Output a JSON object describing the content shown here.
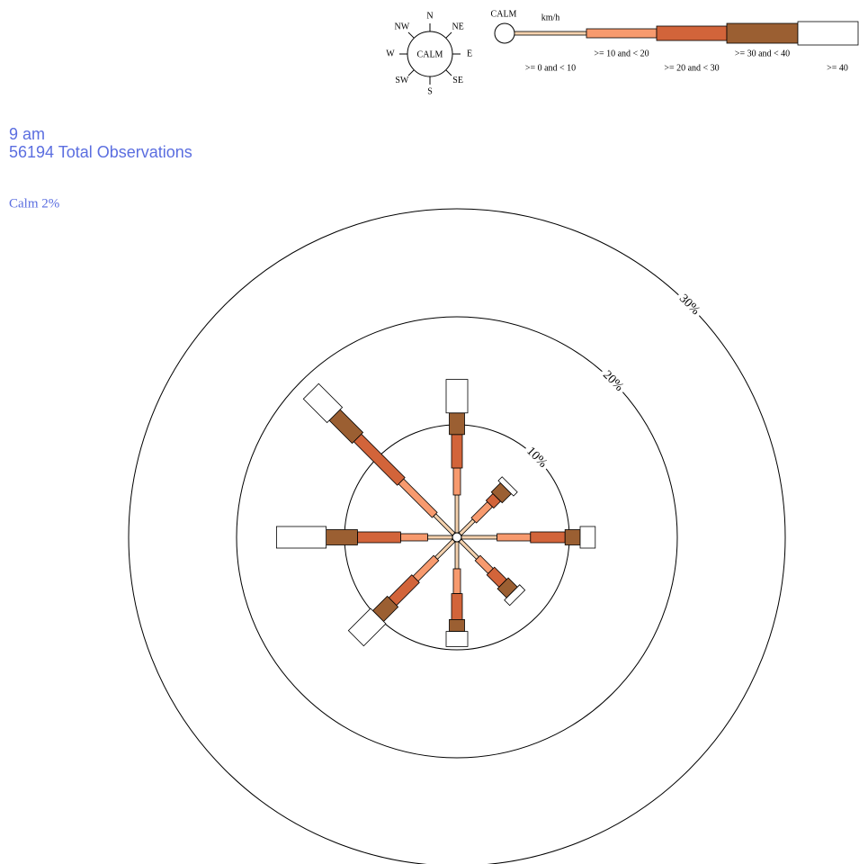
{
  "chart_data": {
    "type": "windrose",
    "title": "9 am",
    "subtitle": "56194 Total Observations",
    "calm_label": "Calm 2%",
    "categories": [
      "N",
      "NE",
      "E",
      "SE",
      "S",
      "SW",
      "W",
      "NW"
    ],
    "legend": {
      "calm": "CALM",
      "compass_center": "CALM",
      "unit": "km/h"
    },
    "rlim": [
      0,
      30
    ],
    "rticks": [
      {
        "value": 10,
        "label": "10%"
      },
      {
        "value": 20,
        "label": "20%"
      },
      {
        "value": 30,
        "label": "30%"
      }
    ],
    "series": [
      {
        "name": ">= 0 and < 10",
        "color": "#f5d2ae",
        "values": [
          3.5,
          1.8,
          3.3,
          2.3,
          2.5,
          2.3,
          2.3,
          2.5
        ]
      },
      {
        "name": ">= 10 and < 20",
        "color": "#f79a6e",
        "values": [
          2.5,
          2.1,
          3.1,
          1.7,
          2.3,
          2.7,
          2.5,
          4.4
        ]
      },
      {
        "name": ">= 20 and < 30",
        "color": "#d2643a",
        "values": [
          3.1,
          0.9,
          3.2,
          1.6,
          2.4,
          3.0,
          4.0,
          5.7
        ]
      },
      {
        "name": ">= 30 and < 40",
        "color": "#9b5f32",
        "values": [
          2.0,
          1.2,
          1.4,
          1.2,
          1.1,
          1.9,
          2.9,
          3.0
        ]
      },
      {
        "name": ">= 40",
        "color": "#ffffff",
        "values": [
          3.1,
          0.5,
          1.4,
          0.7,
          1.4,
          2.9,
          4.6,
          3.1
        ]
      }
    ]
  }
}
